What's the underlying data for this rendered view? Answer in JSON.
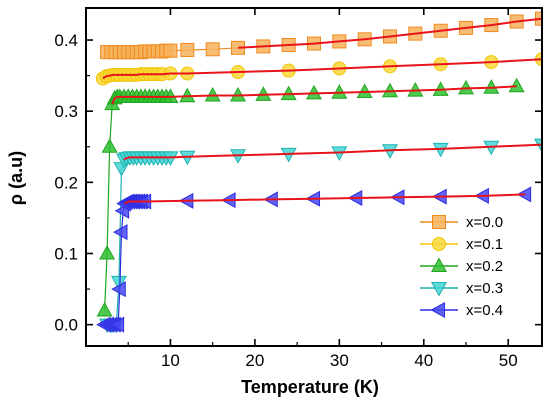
{
  "chart_data": {
    "type": "scatter",
    "xlabel": "Temperature (K)",
    "ylabel": "ρ (a.u)",
    "xlim": [
      0,
      54
    ],
    "ylim": [
      -0.03,
      0.445
    ],
    "xticks": [
      10,
      20,
      30,
      40,
      50
    ],
    "yticks": [
      0.0,
      0.1,
      0.2,
      0.3,
      0.4
    ],
    "ytick_labels": [
      "0.0",
      "0.1",
      "0.2",
      "0.3",
      "0.4"
    ],
    "legend_placement": "bottom-right",
    "fit_color": "#e8141b",
    "series": [
      {
        "name": "x=0.0",
        "marker": "square",
        "color": "#f08a1e",
        "fill": "#f7b25c",
        "x": [
          2.5,
          3,
          3.5,
          4,
          4.5,
          5,
          5.5,
          6,
          6.5,
          7,
          7.5,
          8,
          8.5,
          9,
          9.5,
          10,
          12,
          15,
          18,
          21,
          24,
          27,
          30,
          33,
          36,
          39,
          42,
          45,
          48,
          51,
          54
        ],
        "y": [
          0.383,
          0.383,
          0.383,
          0.383,
          0.383,
          0.383,
          0.383,
          0.383,
          0.383,
          0.384,
          0.384,
          0.384,
          0.384,
          0.384,
          0.385,
          0.385,
          0.386,
          0.387,
          0.389,
          0.391,
          0.393,
          0.395,
          0.398,
          0.401,
          0.405,
          0.409,
          0.413,
          0.417,
          0.421,
          0.426,
          0.43
        ]
      },
      {
        "name": "x=0.1",
        "marker": "circle",
        "color": "#f2c400",
        "fill": "#f9d83a",
        "x": [
          2.0,
          2.4,
          2.8,
          3.2,
          3.6,
          4,
          4.5,
          5,
          5.5,
          6,
          6.5,
          7,
          7.5,
          8,
          8.5,
          9,
          10,
          12,
          18,
          24,
          30,
          36,
          42,
          48,
          54
        ],
        "y": [
          0.346,
          0.349,
          0.35,
          0.351,
          0.351,
          0.351,
          0.351,
          0.351,
          0.351,
          0.351,
          0.352,
          0.352,
          0.352,
          0.352,
          0.352,
          0.352,
          0.353,
          0.353,
          0.355,
          0.357,
          0.36,
          0.363,
          0.366,
          0.369,
          0.373
        ]
      },
      {
        "name": "x=0.2",
        "marker": "triangle-up",
        "color": "#1fa51f",
        "fill": "#2fc12f",
        "x": [
          2.2,
          2.5,
          2.8,
          3.1,
          3.4,
          3.7,
          4,
          4.5,
          5,
          5.5,
          6,
          6.5,
          7,
          7.5,
          8,
          8.5,
          9,
          9.5,
          10,
          12,
          15,
          18,
          21,
          24,
          27,
          30,
          33,
          36,
          39,
          42,
          45,
          48,
          51
        ],
        "y": [
          0.02,
          0.1,
          0.25,
          0.31,
          0.318,
          0.32,
          0.32,
          0.32,
          0.32,
          0.32,
          0.32,
          0.32,
          0.32,
          0.32,
          0.32,
          0.32,
          0.32,
          0.32,
          0.32,
          0.321,
          0.322,
          0.322,
          0.323,
          0.324,
          0.325,
          0.326,
          0.327,
          0.328,
          0.329,
          0.33,
          0.332,
          0.333,
          0.335
        ]
      },
      {
        "name": "x=0.3",
        "marker": "triangle-down",
        "color": "#1fb0b0",
        "fill": "#45d6d6",
        "x": [
          2.5,
          3.0,
          3.3,
          3.6,
          3.9,
          4.2,
          4.5,
          4.8,
          5.2,
          5.6,
          6,
          6.5,
          7,
          7.5,
          8,
          8.5,
          9,
          9.5,
          10,
          12,
          18,
          24,
          30,
          36,
          42,
          48,
          54
        ],
        "y": [
          0.0,
          0.0,
          0.0,
          0.0,
          0.06,
          0.22,
          0.232,
          0.234,
          0.235,
          0.235,
          0.235,
          0.235,
          0.235,
          0.235,
          0.235,
          0.235,
          0.235,
          0.235,
          0.235,
          0.236,
          0.238,
          0.24,
          0.242,
          0.245,
          0.247,
          0.25,
          0.253
        ]
      },
      {
        "name": "x=0.4",
        "marker": "triangle-left",
        "color": "#2b2be0",
        "fill": "#4747f2",
        "x": [
          2.2,
          2.6,
          3.0,
          3.4,
          3.8,
          4.0,
          4.2,
          4.4,
          4.6,
          4.8,
          5.1,
          5.4,
          5.7,
          6.0,
          6.3,
          6.6,
          7,
          12,
          17,
          22,
          27,
          32,
          37,
          42,
          47,
          52
        ],
        "y": [
          0.0,
          0.0,
          0.0,
          0.0,
          0.0,
          0.05,
          0.13,
          0.16,
          0.17,
          0.172,
          0.173,
          0.173,
          0.173,
          0.173,
          0.173,
          0.173,
          0.173,
          0.174,
          0.175,
          0.176,
          0.177,
          0.178,
          0.179,
          0.18,
          0.181,
          0.183
        ]
      }
    ]
  }
}
